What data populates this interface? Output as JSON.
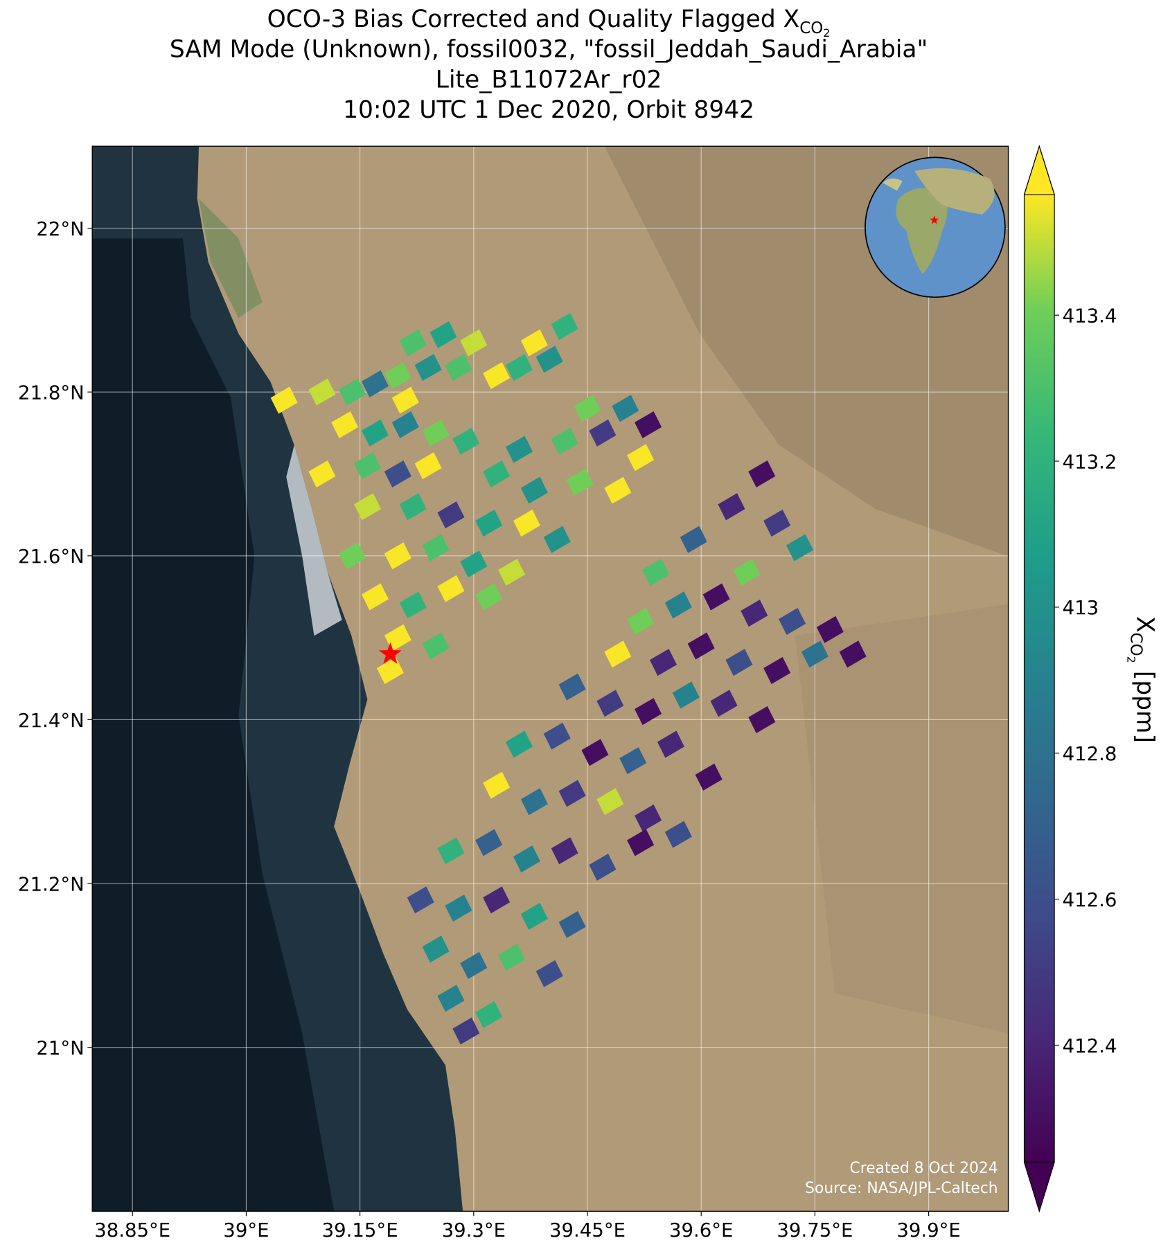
{
  "chart_data": {
    "type": "map-scatter",
    "title": [
      {
        "text": "OCO-3 Bias Corrected and Quality Flagged X",
        "sub": "CO",
        "subsub": "2"
      },
      {
        "text": "SAM Mode (Unknown), fossil0032, \"fossil_Jeddah_Saudi_Arabia\""
      },
      {
        "text": "Lite_B11072Ar_r02"
      },
      {
        "text": "10:02 UTC 1 Dec 2020, Orbit 8942"
      }
    ],
    "xlim": [
      38.797,
      40.005
    ],
    "ylim": [
      20.8,
      22.1
    ],
    "xticks": [
      {
        "value": 38.85,
        "label": "38.85°E"
      },
      {
        "value": 39,
        "label": "39°E"
      },
      {
        "value": 39.15,
        "label": "39.15°E"
      },
      {
        "value": 39.3,
        "label": "39.3°E"
      },
      {
        "value": 39.45,
        "label": "39.45°E"
      },
      {
        "value": 39.6,
        "label": "39.6°E"
      },
      {
        "value": 39.75,
        "label": "39.75°E"
      },
      {
        "value": 39.9,
        "label": "39.9°E"
      }
    ],
    "yticks": [
      {
        "value": 21,
        "label": "21°N"
      },
      {
        "value": 21.2,
        "label": "21.2°N"
      },
      {
        "value": 21.4,
        "label": "21.4°N"
      },
      {
        "value": 21.6,
        "label": "21.6°N"
      },
      {
        "value": 21.8,
        "label": "21.8°N"
      },
      {
        "value": 22,
        "label": "22°N"
      }
    ],
    "grid": true,
    "colormap": "viridis",
    "clim": [
      412.24,
      413.565
    ],
    "cticks": [
      412.4,
      412.6,
      412.8,
      413.0,
      413.2,
      413.4
    ],
    "colorbar_label": {
      "text": "X",
      "sub": "CO",
      "subsub": "2",
      "unit": " [ppm]"
    },
    "marker": {
      "x": 39.19,
      "y": 21.48,
      "color": "#ff0000"
    },
    "credits": [
      "Created 8 Oct 2024",
      "Source: NASA/JPL-Caltech"
    ],
    "x": [
      39.22,
      39.26,
      39.3,
      39.38,
      39.42,
      39.2,
      39.24,
      39.28,
      39.33,
      39.36,
      39.4,
      39.05,
      39.1,
      39.14,
      39.17,
      39.21,
      39.45,
      39.5,
      39.53,
      39.13,
      39.17,
      39.21,
      39.25,
      39.29,
      39.36,
      39.42,
      39.47,
      39.52,
      39.1,
      39.16,
      39.2,
      39.24,
      39.33,
      39.38,
      39.44,
      39.49,
      39.16,
      39.22,
      39.27,
      39.32,
      39.37,
      39.41,
      39.14,
      39.2,
      39.25,
      39.3,
      39.35,
      39.17,
      39.22,
      39.27,
      39.32,
      39.2,
      39.25,
      39.19,
      39.54,
      39.59,
      39.64,
      39.68,
      39.7,
      39.73,
      39.66,
      39.52,
      39.57,
      39.62,
      39.67,
      39.72,
      39.77,
      39.49,
      39.55,
      39.6,
      39.65,
      39.7,
      39.75,
      39.8,
      39.43,
      39.48,
      39.53,
      39.58,
      39.63,
      39.68,
      39.36,
      39.41,
      39.46,
      39.51,
      39.56,
      39.61,
      39.33,
      39.38,
      39.43,
      39.48,
      39.53,
      39.57,
      39.27,
      39.32,
      39.37,
      39.42,
      39.47,
      39.52,
      39.23,
      39.28,
      39.33,
      39.38,
      39.43,
      39.25,
      39.3,
      39.35,
      39.4,
      39.27,
      39.32,
      39.29
    ],
    "y": [
      21.86,
      21.87,
      21.86,
      21.86,
      21.88,
      21.82,
      21.83,
      21.83,
      21.82,
      21.83,
      21.84,
      21.79,
      21.8,
      21.8,
      21.81,
      21.79,
      21.78,
      21.78,
      21.76,
      21.76,
      21.75,
      21.76,
      21.75,
      21.74,
      21.73,
      21.74,
      21.75,
      21.72,
      21.7,
      21.71,
      21.7,
      21.71,
      21.7,
      21.68,
      21.69,
      21.68,
      21.66,
      21.66,
      21.65,
      21.64,
      21.64,
      21.62,
      21.6,
      21.6,
      21.61,
      21.59,
      21.58,
      21.55,
      21.54,
      21.56,
      21.55,
      21.5,
      21.49,
      21.46,
      21.58,
      21.62,
      21.66,
      21.7,
      21.64,
      21.61,
      21.58,
      21.52,
      21.54,
      21.55,
      21.53,
      21.52,
      21.51,
      21.48,
      21.47,
      21.49,
      21.47,
      21.46,
      21.48,
      21.48,
      21.44,
      21.42,
      21.41,
      21.43,
      21.42,
      21.4,
      21.37,
      21.38,
      21.36,
      21.35,
      21.37,
      21.33,
      21.32,
      21.3,
      21.31,
      21.3,
      21.28,
      21.26,
      21.24,
      21.25,
      21.23,
      21.24,
      21.22,
      21.25,
      21.18,
      21.17,
      21.18,
      21.16,
      21.15,
      21.12,
      21.1,
      21.11,
      21.09,
      21.06,
      21.04,
      21.02
    ],
    "values": [
      413.3,
      413.1,
      413.5,
      413.56,
      413.2,
      413.4,
      413.0,
      413.3,
      413.56,
      413.2,
      413.0,
      413.56,
      413.5,
      413.3,
      412.8,
      413.56,
      413.4,
      412.9,
      412.3,
      413.56,
      413.1,
      412.9,
      413.4,
      413.2,
      413.0,
      413.3,
      412.5,
      413.56,
      413.56,
      413.3,
      412.6,
      413.56,
      413.2,
      413.0,
      413.4,
      413.56,
      413.5,
      413.2,
      412.5,
      413.1,
      413.56,
      413.0,
      413.4,
      413.56,
      413.3,
      413.1,
      413.5,
      413.56,
      413.2,
      413.56,
      413.4,
      413.56,
      413.3,
      413.56,
      413.3,
      412.7,
      412.4,
      412.3,
      412.5,
      413.0,
      413.4,
      413.4,
      412.9,
      412.3,
      412.4,
      412.6,
      412.3,
      413.56,
      412.4,
      412.3,
      412.6,
      412.3,
      412.8,
      412.3,
      412.7,
      412.5,
      412.3,
      412.9,
      412.4,
      412.3,
      413.1,
      412.6,
      412.3,
      412.7,
      412.4,
      412.3,
      413.56,
      412.8,
      412.5,
      413.5,
      412.4,
      412.6,
      413.2,
      412.7,
      412.9,
      412.4,
      412.6,
      412.3,
      412.6,
      412.9,
      412.4,
      413.1,
      412.7,
      413.0,
      412.8,
      413.3,
      412.6,
      412.9,
      413.2,
      412.5
    ]
  }
}
